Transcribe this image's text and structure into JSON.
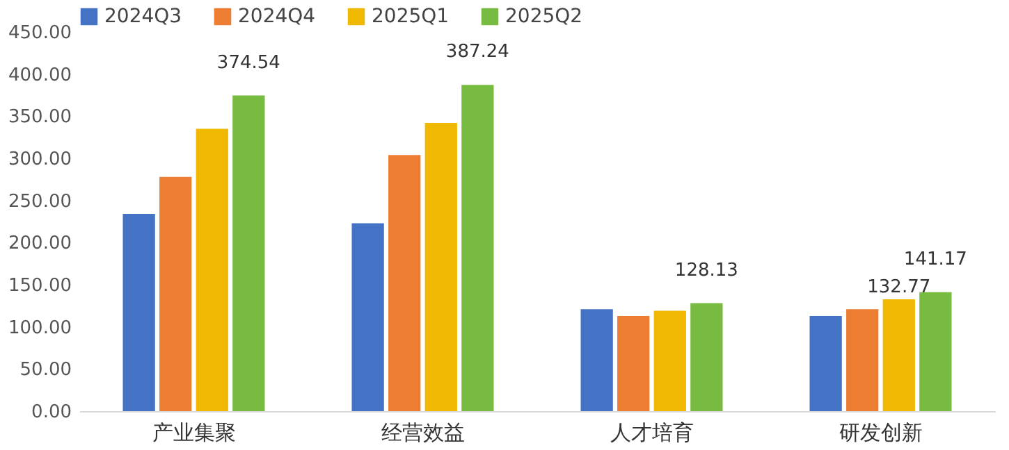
{
  "chart_data": {
    "type": "bar",
    "categories": [
      "产业集聚",
      "经营效益",
      "人才培育",
      "研发创新"
    ],
    "series": [
      {
        "name": "2024Q3",
        "color": "#4472c4",
        "values": [
          234,
          223,
          121,
          113
        ],
        "value_labels": [
          null,
          null,
          null,
          null
        ]
      },
      {
        "name": "2024Q4",
        "color": "#ed7d31",
        "values": [
          278,
          304,
          113,
          121
        ],
        "value_labels": [
          null,
          null,
          null,
          null
        ]
      },
      {
        "name": "2025Q1",
        "color": "#f0b800",
        "values": [
          335,
          342,
          119,
          132.77
        ],
        "value_labels": [
          null,
          null,
          null,
          "132.77"
        ]
      },
      {
        "name": "2025Q2",
        "color": "#77bb41",
        "values": [
          374.54,
          387.24,
          128.13,
          141.17
        ],
        "value_labels": [
          "374.54",
          "387.24",
          "128.13",
          "141.17"
        ]
      }
    ],
    "ylim": [
      0,
      450
    ],
    "yticks": [
      {
        "value": 0,
        "label": "0.00"
      },
      {
        "value": 50,
        "label": "50.00"
      },
      {
        "value": 100,
        "label": "100.00"
      },
      {
        "value": 150,
        "label": "150.00"
      },
      {
        "value": 200,
        "label": "200.00"
      },
      {
        "value": 250,
        "label": "250.00"
      },
      {
        "value": 300,
        "label": "300.00"
      },
      {
        "value": 350,
        "label": "350.00"
      },
      {
        "value": 400,
        "label": "400.00"
      },
      {
        "value": 450,
        "label": "450.00"
      }
    ],
    "grid": false,
    "legend": "top"
  }
}
